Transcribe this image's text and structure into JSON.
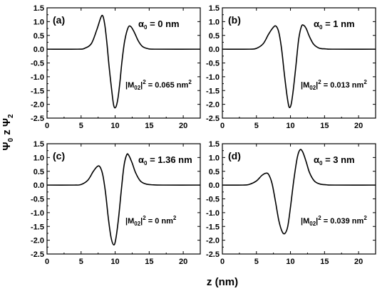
{
  "figure": {
    "xlabel": "z (nm)",
    "ylabel": "Ψ0 z Ψ2"
  },
  "chart_data": [
    {
      "type": "line",
      "panel": "(a)",
      "alpha": "α0 = 0 nm",
      "matrix_element": "|M02|² = 0.065 nm²",
      "xlim": [
        0,
        22.5
      ],
      "ylim": [
        -2.5,
        1.5
      ],
      "xticks": [
        0,
        5,
        10,
        15,
        20
      ],
      "yticks": [
        1.5,
        1.0,
        0.5,
        0.0,
        -0.5,
        -1.0,
        -1.5,
        -2.0,
        -2.5
      ],
      "series": [
        {
          "x": [
            0,
            4.5,
            5.5,
            6.5,
            7.3,
            7.9,
            8.2,
            8.5,
            8.8,
            9.1,
            9.5,
            9.8,
            10.1,
            10.4,
            10.7,
            11.0,
            11.4,
            11.9,
            12.3,
            12.8,
            13.4,
            14.0,
            14.8,
            16.0,
            22.5
          ],
          "y": [
            0,
            0,
            0.03,
            0.2,
            0.7,
            1.15,
            1.2,
            0.85,
            0.2,
            -0.6,
            -1.5,
            -2.05,
            -2.1,
            -1.8,
            -1.2,
            -0.45,
            0.3,
            0.78,
            0.82,
            0.62,
            0.3,
            0.1,
            0.02,
            0,
            0
          ]
        }
      ]
    },
    {
      "type": "line",
      "panel": "(b)",
      "alpha": "α0 = 1 nm",
      "matrix_element": "|M02|² = 0.013 nm²",
      "xlim": [
        0,
        22.5
      ],
      "ylim": [
        -2.5,
        1.5
      ],
      "xticks": [
        0,
        5,
        10,
        15,
        20
      ],
      "yticks": [
        1.5,
        1.0,
        0.5,
        0.0,
        -0.5,
        -1.0,
        -1.5,
        -2.0,
        -2.5
      ],
      "series": [
        {
          "x": [
            0,
            4.0,
            5.0,
            6.0,
            6.8,
            7.5,
            7.9,
            8.3,
            8.7,
            9.1,
            9.5,
            9.8,
            10.1,
            10.4,
            10.8,
            11.2,
            11.6,
            11.9,
            12.3,
            12.8,
            13.4,
            14.2,
            15.2,
            16.5,
            22.5
          ],
          "y": [
            0,
            0,
            0.03,
            0.2,
            0.55,
            0.8,
            0.83,
            0.6,
            0.0,
            -0.9,
            -1.7,
            -2.1,
            -2.0,
            -1.5,
            -0.6,
            0.35,
            0.82,
            0.87,
            0.75,
            0.45,
            0.18,
            0.04,
            0.01,
            0,
            0
          ]
        }
      ]
    },
    {
      "type": "line",
      "panel": "(c)",
      "alpha": "α0 = 1.36 nm",
      "matrix_element": "|M02|² = 0 nm²",
      "xlim": [
        0,
        22.5
      ],
      "ylim": [
        -2.5,
        1.5
      ],
      "xticks": [
        0,
        5,
        10,
        15,
        20
      ],
      "yticks": [
        1.5,
        1.0,
        0.5,
        0.0,
        -0.5,
        -1.0,
        -1.5,
        -2.0,
        -2.5
      ],
      "series": [
        {
          "x": [
            0,
            4.0,
            5.0,
            6.0,
            6.8,
            7.4,
            7.8,
            8.2,
            8.6,
            9.0,
            9.4,
            9.8,
            10.1,
            10.5,
            10.9,
            11.3,
            11.7,
            12.0,
            12.5,
            13.0,
            13.7,
            14.5,
            15.5,
            17.0,
            22.5
          ],
          "y": [
            0,
            0,
            0.02,
            0.18,
            0.5,
            0.68,
            0.65,
            0.35,
            -0.3,
            -1.2,
            -1.9,
            -2.17,
            -1.95,
            -1.2,
            -0.2,
            0.7,
            1.1,
            1.08,
            0.8,
            0.45,
            0.15,
            0.04,
            0.01,
            0,
            0
          ]
        }
      ]
    },
    {
      "type": "line",
      "panel": "(d)",
      "alpha": "α0 = 3 nm",
      "matrix_element": "|M02|² = 0.039 nm²",
      "xlim": [
        0,
        22.5
      ],
      "ylim": [
        -2.5,
        1.5
      ],
      "xticks": [
        0,
        5,
        10,
        15,
        20
      ],
      "yticks": [
        1.5,
        1.0,
        0.5,
        0.0,
        -0.5,
        -1.0,
        -1.5,
        -2.0,
        -2.5
      ],
      "series": [
        {
          "x": [
            0,
            3.0,
            4.0,
            5.0,
            5.8,
            6.4,
            6.8,
            7.3,
            7.8,
            8.3,
            8.8,
            9.2,
            9.6,
            10.0,
            10.5,
            11.0,
            11.4,
            11.8,
            12.3,
            12.8,
            13.5,
            14.3,
            15.3,
            16.5,
            22.5
          ],
          "y": [
            0,
            0,
            0.03,
            0.15,
            0.35,
            0.43,
            0.38,
            0.05,
            -0.6,
            -1.3,
            -1.7,
            -1.75,
            -1.5,
            -0.8,
            0.2,
            1.0,
            1.28,
            1.2,
            0.85,
            0.45,
            0.15,
            0.04,
            0.01,
            0,
            0
          ]
        }
      ]
    }
  ]
}
